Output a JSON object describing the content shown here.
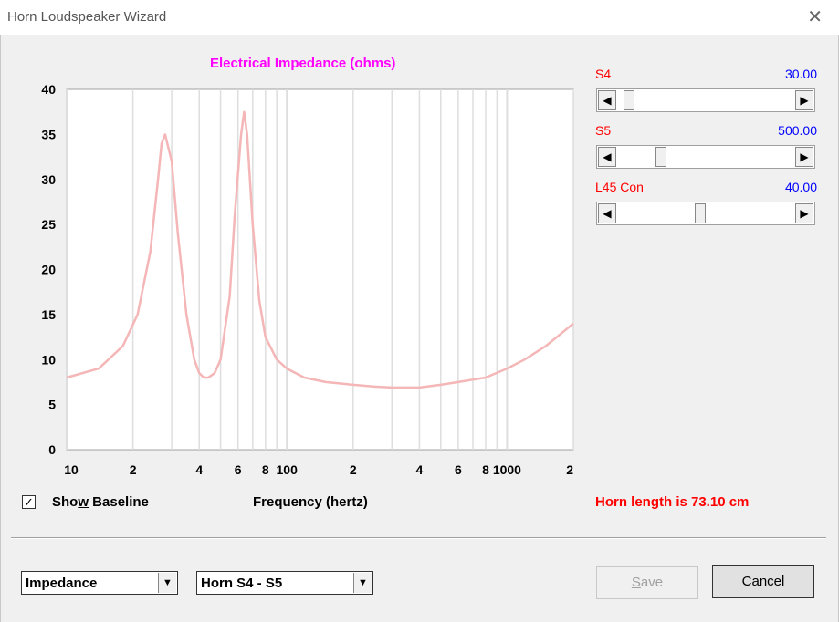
{
  "window": {
    "title": "Horn Loudspeaker Wizard",
    "close_glyph": "✕"
  },
  "chart_data": {
    "type": "line",
    "title": "Electrical Impedance (ohms)",
    "xlabel": "Frequency (hertz)",
    "ylabel": "",
    "xscale": "log",
    "xlim": [
      10,
      2000
    ],
    "ylim": [
      0,
      40
    ],
    "y_ticks": [
      "0",
      "5",
      "10",
      "15",
      "20",
      "25",
      "30",
      "35",
      "40"
    ],
    "x_tick_labels": [
      {
        "x": 10,
        "label": "10"
      },
      {
        "x": 20,
        "label": "2"
      },
      {
        "x": 40,
        "label": "4"
      },
      {
        "x": 60,
        "label": "6"
      },
      {
        "x": 80,
        "label": "8"
      },
      {
        "x": 100,
        "label": "100"
      },
      {
        "x": 200,
        "label": "2"
      },
      {
        "x": 400,
        "label": "4"
      },
      {
        "x": 600,
        "label": "6"
      },
      {
        "x": 800,
        "label": "8"
      },
      {
        "x": 1000,
        "label": "1000"
      },
      {
        "x": 2000,
        "label": "2"
      }
    ],
    "grid": true,
    "line_color": "#f4b6b6",
    "series": [
      {
        "name": "",
        "x": [
          10,
          14,
          18,
          21,
          24,
          26,
          27,
          28,
          30,
          32,
          35,
          38,
          40,
          42,
          44,
          47,
          50,
          55,
          58,
          62,
          64,
          66,
          70,
          75,
          80,
          90,
          100,
          120,
          150,
          200,
          250,
          300,
          400,
          500,
          600,
          800,
          1000,
          1200,
          1500,
          2000
        ],
        "y": [
          8,
          9,
          11.5,
          15,
          22,
          30,
          34,
          35,
          32,
          24,
          15,
          10,
          8.5,
          8,
          8,
          8.5,
          10,
          17,
          26,
          35,
          37.5,
          35,
          25,
          16.5,
          12.5,
          10,
          9,
          8,
          7.5,
          7.2,
          7,
          6.9,
          6.9,
          7.2,
          7.5,
          8,
          9,
          10,
          11.5,
          14
        ]
      }
    ]
  },
  "sliders": [
    {
      "label": "S4",
      "value": "30.00",
      "position": 0.04
    },
    {
      "label": "S5",
      "value": "500.00",
      "position": 0.23
    },
    {
      "label": "L45  Con",
      "value": "40.00",
      "position": 0.46
    }
  ],
  "show_baseline": {
    "checked": true,
    "pre": "Sho",
    "accel": "w",
    "post": " Baseline",
    "mark": "✓"
  },
  "horn_length": "Horn length is 73.10 cm",
  "combo_view": {
    "value": "Impedance"
  },
  "combo_horn": {
    "value": "Horn S4 - S5"
  },
  "buttons": {
    "save": "Save",
    "save_accel": "S",
    "cancel": "Cancel"
  },
  "colors": {
    "label_red": "#ff0000",
    "value_blue": "#0000ff",
    "title_magenta": "#ff00ff"
  }
}
